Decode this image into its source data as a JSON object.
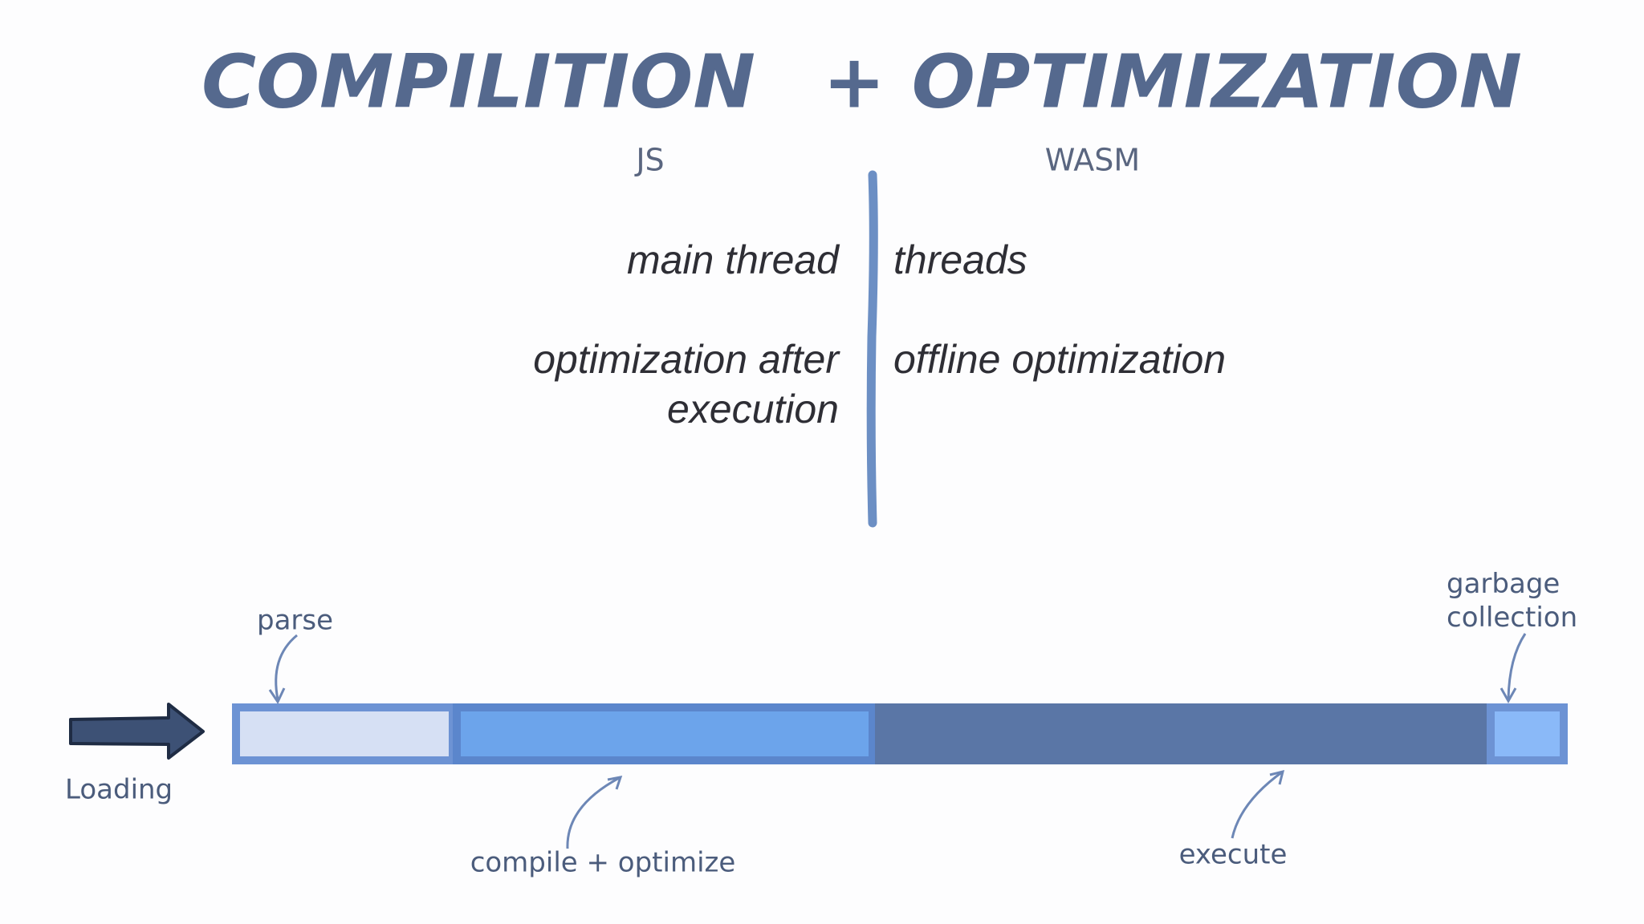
{
  "title": {
    "left": "COMPILITION",
    "right": "+ OPTIMIZATION"
  },
  "columns": [
    {
      "header": "JS",
      "items": [
        "main thread",
        "optimization after execution"
      ]
    },
    {
      "header": "WASM",
      "items": [
        "threads",
        "offline optimization"
      ]
    }
  ],
  "timeline": {
    "start_label": "Loading",
    "segments": [
      {
        "label": "parse"
      },
      {
        "label": "compile + optimize"
      },
      {
        "label": "execute"
      },
      {
        "label": "garbage collection"
      }
    ]
  }
}
